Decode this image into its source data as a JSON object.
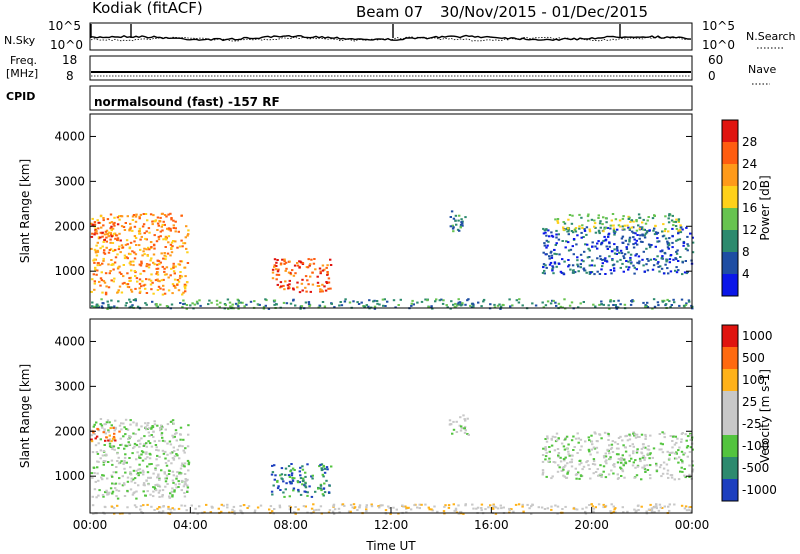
{
  "header": {
    "station": "Kodiak (fitACF)",
    "beam": "Beam 07",
    "dates": "30/Nov/2015 - 01/Dec/2015"
  },
  "strip_nsky": {
    "left_label": "N.Sky",
    "left_ticks": [
      "10^5",
      "10^0"
    ],
    "right_label": "N.Search",
    "right_ticks": [
      "10^5",
      "10^0"
    ],
    "right_legend_style": "dotted"
  },
  "strip_freq": {
    "left_label_1": "Freq.",
    "left_label_2": "[MHz]",
    "left_ticks": [
      "18",
      "8"
    ],
    "right_label": "Nave",
    "right_ticks": [
      "60",
      "0"
    ],
    "right_legend_style": "dotted"
  },
  "cpid": {
    "label": "CPID",
    "text": "normalsound (fast) -157 RF"
  },
  "chart_data": [
    {
      "type": "heatmap",
      "name": "power-panel",
      "quantity": "Power",
      "ylabel": "Slant Range [km]",
      "yticks": [
        1000,
        2000,
        3000,
        4000
      ],
      "ylim": [
        180,
        4500
      ],
      "xlim_hours": [
        0,
        24
      ],
      "colorbar": {
        "title": "Power [dB]",
        "ticks": [
          "4",
          "8",
          "12",
          "16",
          "20",
          "24",
          "28"
        ],
        "colors": [
          "#0b17e8",
          "#1f4ea3",
          "#2d8a6e",
          "#67c350",
          "#ffd11a",
          "#ff9a1a",
          "#ff5d10",
          "#e0140f"
        ]
      },
      "regions": [
        {
          "h0": 0.0,
          "h1": 3.9,
          "r0": 500,
          "r1": 2300,
          "level": 5
        },
        {
          "h0": 0.0,
          "h1": 1.2,
          "r0": 1700,
          "r1": 2100,
          "level": 6
        },
        {
          "h0": 7.2,
          "h1": 9.6,
          "r0": 550,
          "r1": 1300,
          "level": 6
        },
        {
          "h0": 14.3,
          "h1": 15.1,
          "r0": 1900,
          "r1": 2400,
          "level": 2
        },
        {
          "h0": 18.0,
          "h1": 24.0,
          "r0": 950,
          "r1": 2000,
          "level": 1
        },
        {
          "h0": 18.5,
          "h1": 23.5,
          "r0": 1900,
          "r1": 2300,
          "level": 3
        },
        {
          "h0": 0.0,
          "h1": 24.0,
          "r0": 180,
          "r1": 400,
          "level": 2
        }
      ]
    },
    {
      "type": "heatmap",
      "name": "velocity-panel",
      "quantity": "Velocity",
      "ylabel": "Slant Range [km]",
      "yticks": [
        1000,
        2000,
        3000,
        4000
      ],
      "ylim": [
        180,
        4500
      ],
      "xlim_hours": [
        0,
        24
      ],
      "xticks": [
        "00:00",
        "04:00",
        "08:00",
        "12:00",
        "16:00",
        "20:00",
        "00:00"
      ],
      "xlabel": "Time UT",
      "colorbar": {
        "title": "Velocity [m s-1]",
        "ticks": [
          "1000",
          "500",
          "100",
          "25",
          "-25",
          "-100",
          "-500",
          "-1000"
        ],
        "colors": [
          "#1c3fbf",
          "#2d8a6e",
          "#53c43e",
          "#c8c8c8",
          "#c8c8c8",
          "#ffb21a",
          "#ff6a10",
          "#e0140f"
        ]
      },
      "regions": [
        {
          "h0": 0.0,
          "h1": 3.9,
          "r0": 500,
          "r1": 2300,
          "level": 3
        },
        {
          "h0": 0.0,
          "h1": 1.2,
          "r0": 1800,
          "r1": 2100,
          "level": 6
        },
        {
          "h0": 7.2,
          "h1": 9.6,
          "r0": 550,
          "r1": 1300,
          "level": 1
        },
        {
          "h0": 14.3,
          "h1": 15.1,
          "r0": 1900,
          "r1": 2400,
          "level": 3
        },
        {
          "h0": 18.0,
          "h1": 24.0,
          "r0": 950,
          "r1": 2000,
          "level": 3
        },
        {
          "h0": 0.0,
          "h1": 24.0,
          "r0": 180,
          "r1": 400,
          "level": 4
        }
      ]
    }
  ]
}
